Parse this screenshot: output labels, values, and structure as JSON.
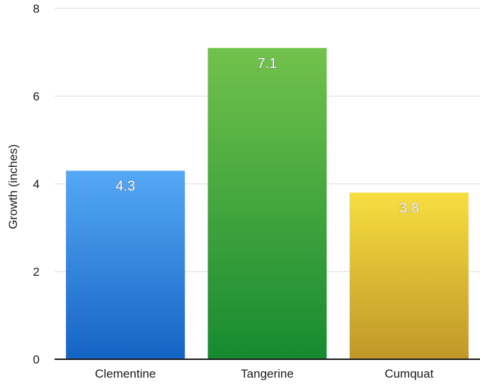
{
  "chart_data": {
    "type": "bar",
    "title": "",
    "xlabel": "",
    "ylabel": "Growth (inches)",
    "ylim": [
      0,
      8
    ],
    "yticks": [
      0,
      2,
      4,
      6,
      8
    ],
    "grid": true,
    "categories": [
      "Clementine",
      "Tangerine",
      "Cumquat"
    ],
    "values": [
      4.3,
      7.1,
      3.8
    ],
    "data_labels": [
      "4.3",
      "7.1",
      "3.8"
    ],
    "colors": [
      {
        "top": "#55a8f5",
        "bottom": "#1564c4"
      },
      {
        "top": "#72c24c",
        "bottom": "#168a30"
      },
      {
        "top": "#f8de40",
        "bottom": "#bf9728"
      }
    ]
  }
}
